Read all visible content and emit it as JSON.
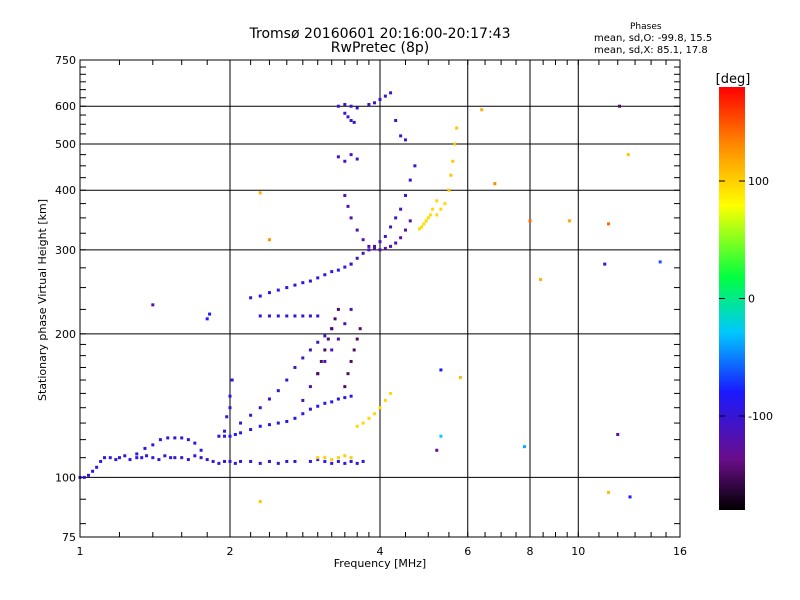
{
  "title": "Tromsø 20160601 20:16:00-20:17:43",
  "subtitle": "RwPretec (8p)",
  "phases": {
    "header": "Phases",
    "line_o": "mean, sd,O: -99.8, 15.5",
    "line_x": "mean, sd,X:  85.1, 17.8"
  },
  "colorbar": {
    "label": "[deg]",
    "ticks": [
      {
        "value": 100,
        "label": "100"
      },
      {
        "value": 0,
        "label": "0"
      },
      {
        "value": -100,
        "label": "-100"
      }
    ],
    "range": [
      -180,
      180
    ]
  },
  "chart_data": {
    "type": "scatter",
    "x_scale": "log",
    "y_scale": "log",
    "xlabel": "Frequency [MHz]",
    "ylabel": "Stationary phase Virtual Height [km]",
    "xlim": [
      1,
      16
    ],
    "ylim": [
      75,
      750
    ],
    "xticks": [
      1,
      2,
      4,
      6,
      8,
      10,
      16
    ],
    "yticks": [
      75,
      100,
      200,
      300,
      400,
      500,
      600,
      750
    ],
    "grid": true,
    "color_by": "phase [deg]",
    "series": [
      {
        "phase": -110,
        "x": [
          1.0,
          1.02,
          1.04,
          1.06,
          1.08,
          1.1,
          1.12,
          1.15,
          1.18,
          1.2,
          1.23,
          1.26,
          1.3,
          1.33,
          1.36,
          1.4,
          1.44,
          1.48,
          1.52
        ],
        "y": [
          100,
          100,
          101,
          103,
          105,
          108,
          110,
          110,
          109,
          110,
          111,
          109,
          110,
          110,
          111,
          110,
          109,
          111,
          110
        ]
      },
      {
        "phase": -115,
        "x": [
          1.55,
          1.6,
          1.65,
          1.7,
          1.75,
          1.8,
          1.85,
          1.9,
          1.95,
          2.0,
          2.05,
          2.1,
          2.2,
          2.3,
          2.4,
          2.5,
          2.6,
          2.7
        ],
        "y": [
          110,
          110,
          109,
          111,
          110,
          109,
          108,
          107,
          108,
          108,
          107,
          108,
          108,
          107,
          108,
          107,
          108,
          108
        ]
      },
      {
        "phase": -110,
        "x": [
          1.3,
          1.35,
          1.4,
          1.45,
          1.5,
          1.55,
          1.6,
          1.65,
          1.7,
          1.75
        ],
        "y": [
          112,
          115,
          117,
          120,
          121,
          121,
          121,
          120,
          118,
          114
        ]
      },
      {
        "phase": -105,
        "x": [
          1.9,
          1.95,
          2.0,
          2.05,
          2.1,
          2.2,
          2.3,
          2.4,
          2.5,
          2.6,
          2.7,
          2.8,
          2.9,
          3.0,
          3.1,
          3.2,
          3.3,
          3.4,
          3.5
        ],
        "y": [
          122,
          122,
          122,
          123,
          124,
          126,
          128,
          129,
          130,
          131,
          133,
          136,
          139,
          141,
          143,
          144,
          146,
          147,
          148
        ]
      },
      {
        "phase": -112,
        "x": [
          1.95,
          1.97,
          2.0,
          2.0,
          2.02
        ],
        "y": [
          125,
          134,
          140,
          148,
          160
        ]
      },
      {
        "phase": -118,
        "x": [
          2.1,
          2.2,
          2.3,
          2.4,
          2.5,
          2.6,
          2.7,
          2.8,
          2.9,
          3.0,
          3.1,
          3.2
        ],
        "y": [
          130,
          135,
          140,
          146,
          152,
          160,
          170,
          178,
          185,
          192,
          198,
          205
        ]
      },
      {
        "phase": -108,
        "x": [
          2.2,
          2.3,
          2.4,
          2.5,
          2.6,
          2.7,
          2.8,
          2.9,
          3.0,
          3.1,
          3.2,
          3.3,
          3.4,
          3.5
        ],
        "y": [
          238,
          240,
          244,
          247,
          250,
          253,
          256,
          258,
          262,
          266,
          270,
          272,
          276,
          280
        ]
      },
      {
        "phase": -112,
        "x": [
          2.3,
          2.4,
          2.5,
          2.6,
          2.7,
          2.8,
          2.9,
          3.0
        ],
        "y": [
          218,
          218,
          218,
          218,
          218,
          218,
          218,
          218
        ]
      },
      {
        "phase": -125,
        "x": [
          2.8,
          2.9,
          3.0,
          3.1,
          3.2,
          3.3,
          3.4,
          3.5
        ],
        "y": [
          145,
          155,
          165,
          175,
          185,
          195,
          210,
          225
        ]
      },
      {
        "phase": -150,
        "x": [
          3.0,
          3.05,
          3.1,
          3.15,
          3.2,
          3.25,
          3.3
        ],
        "y": [
          165,
          175,
          185,
          195,
          205,
          215,
          225
        ]
      },
      {
        "phase": -150,
        "x": [
          3.4,
          3.45,
          3.5,
          3.55,
          3.6,
          3.65
        ],
        "y": [
          155,
          165,
          175,
          185,
          195,
          205
        ]
      },
      {
        "phase": -130,
        "x": [
          3.4,
          3.45,
          3.5,
          3.6,
          3.7,
          3.8,
          3.9,
          4.0,
          4.1,
          4.2,
          4.3,
          4.4,
          4.5,
          4.6
        ],
        "y": [
          390,
          370,
          350,
          330,
          315,
          305,
          302,
          300,
          302,
          305,
          310,
          318,
          330,
          345
        ]
      },
      {
        "phase": -120,
        "x": [
          3.5,
          3.6,
          3.7,
          3.8,
          3.9,
          4.0,
          4.1,
          4.2,
          4.3,
          4.4,
          4.5,
          4.6,
          4.7
        ],
        "y": [
          280,
          288,
          295,
          300,
          305,
          312,
          320,
          335,
          350,
          365,
          390,
          420,
          450
        ]
      },
      {
        "phase": -118,
        "x": [
          3.3,
          3.4,
          3.5,
          3.6,
          3.8,
          3.9,
          4.0,
          4.1,
          4.2,
          4.3,
          4.4
        ],
        "y": [
          600,
          605,
          600,
          595,
          605,
          610,
          620,
          630,
          640,
          560,
          520
        ]
      },
      {
        "phase": -115,
        "x": [
          3.4,
          3.45,
          3.5,
          3.55
        ],
        "y": [
          580,
          570,
          560,
          555
        ]
      },
      {
        "phase": -120,
        "x": [
          3.3,
          3.4,
          3.5,
          3.6
        ],
        "y": [
          470,
          460,
          475,
          465
        ]
      },
      {
        "phase": -110,
        "x": [
          2.9,
          3.0,
          3.1,
          3.2,
          3.3,
          3.4,
          3.5,
          3.6,
          3.7
        ],
        "y": [
          108,
          109,
          108,
          107,
          108,
          107,
          108,
          107,
          108
        ]
      },
      {
        "phase": 105,
        "x": [
          3.0,
          3.1,
          3.2,
          3.3,
          3.4,
          3.5
        ],
        "y": [
          110,
          110,
          109,
          110,
          111,
          110
        ]
      },
      {
        "phase": 100,
        "x": [
          3.6,
          3.7,
          3.8,
          3.9,
          4.0,
          4.1,
          4.2
        ],
        "y": [
          128,
          130,
          133,
          136,
          140,
          145,
          150
        ]
      },
      {
        "phase": 100,
        "x": [
          4.8,
          4.85,
          4.9,
          4.95,
          5.0,
          5.05,
          5.1,
          5.2
        ],
        "y": [
          332,
          335,
          340,
          345,
          350,
          355,
          365,
          380
        ]
      },
      {
        "phase": 110,
        "x": [
          5.5,
          5.55,
          5.6,
          5.65,
          5.7
        ],
        "y": [
          400,
          430,
          460,
          500,
          540
        ]
      },
      {
        "phase": 100,
        "x": [
          5.2,
          5.3,
          5.4
        ],
        "y": [
          355,
          365,
          375
        ]
      },
      {
        "phase": -130,
        "x": [
          1.4
        ],
        "y": [
          230
        ]
      },
      {
        "phase": -100,
        "x": [
          1.8,
          1.82
        ],
        "y": [
          215,
          220
        ]
      },
      {
        "phase": 120,
        "x": [
          2.3
        ],
        "y": [
          395
        ]
      },
      {
        "phase": 135,
        "x": [
          2.4
        ],
        "y": [
          315
        ]
      },
      {
        "phase": 110,
        "x": [
          2.3
        ],
        "y": [
          89
        ]
      },
      {
        "phase": -100,
        "x": [
          5.3
        ],
        "y": [
          168
        ]
      },
      {
        "phase": 115,
        "x": [
          5.8
        ],
        "y": [
          162
        ]
      },
      {
        "phase": -140,
        "x": [
          5.2
        ],
        "y": [
          114
        ]
      },
      {
        "phase": -40,
        "x": [
          5.3
        ],
        "y": [
          122
        ]
      },
      {
        "phase": 140,
        "x": [
          6.8
        ],
        "y": [
          413
        ]
      },
      {
        "phase": 150,
        "x": [
          8.0
        ],
        "y": [
          345
        ]
      },
      {
        "phase": 125,
        "x": [
          9.6
        ],
        "y": [
          345
        ]
      },
      {
        "phase": 120,
        "x": [
          8.4
        ],
        "y": [
          260
        ]
      },
      {
        "phase": 150,
        "x": [
          11.5
        ],
        "y": [
          340
        ]
      },
      {
        "phase": -105,
        "x": [
          11.3
        ],
        "y": [
          280
        ]
      },
      {
        "phase": -80,
        "x": [
          14.6
        ],
        "y": [
          283
        ]
      },
      {
        "phase": -50,
        "x": [
          7.8
        ],
        "y": [
          116
        ]
      },
      {
        "phase": -130,
        "x": [
          12.0
        ],
        "y": [
          123
        ]
      },
      {
        "phase": 115,
        "x": [
          11.5
        ],
        "y": [
          93
        ]
      },
      {
        "phase": -100,
        "x": [
          12.7
        ],
        "y": [
          91
        ]
      },
      {
        "phase": 110,
        "x": [
          12.6
        ],
        "y": [
          475
        ]
      },
      {
        "phase": -150,
        "x": [
          12.1
        ],
        "y": [
          600
        ]
      },
      {
        "phase": 120,
        "x": [
          6.4
        ],
        "y": [
          590
        ]
      },
      {
        "phase": -120,
        "x": [
          4.5
        ],
        "y": [
          510
        ]
      }
    ]
  }
}
